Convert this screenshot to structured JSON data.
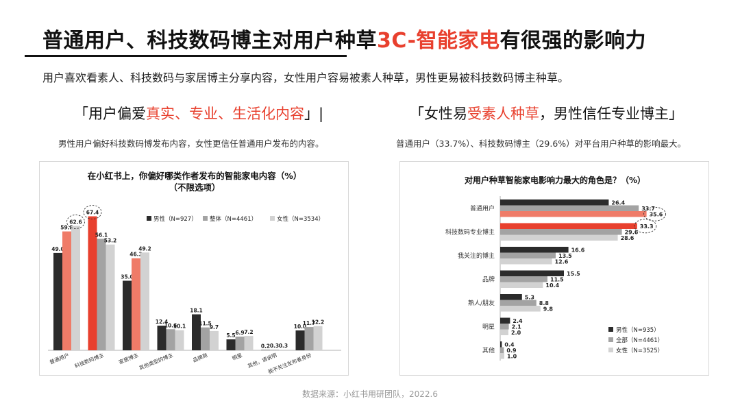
{
  "header": {
    "title_part1": "普通用户、科技数码博主对用户种草",
    "title_highlight": "3C-智能家电",
    "title_part2": "有很强的影响力",
    "subtitle": "用户喜欢看素人、科技数码与家居博主分享内容，女性用户容易被素人种草，男性更易被科技数码博主种草。"
  },
  "left_quote": {
    "open": "「用户偏爱",
    "highlight": "真实、专业、生活化内容",
    "close": "」|",
    "desc": "男性用户偏好科技数码博发布内容，女性更信任普通用户发布的内容。"
  },
  "right_quote": {
    "open": "「女性易",
    "highlight": "受素人种草",
    "close": "，男性信任专业博主」",
    "desc": "普通用户（33.7%）、科技数码博主（29.6%）对平台用户种草的影响最大。"
  },
  "source": "数据来源：小红书用研团队，2022.6",
  "colors": {
    "accent": "#e8402e",
    "male": "#2b2b2b",
    "overall": "#a3a3a3",
    "female": "#d2d2d2",
    "highlight_red": "#e8402e",
    "highlight_salmon": "#ef7b68"
  },
  "chart_data": [
    {
      "type": "bar",
      "title": "在小红书上，你偏好哪类作者发布的智能家电内容（%）",
      "subtitle": "（不限选项）",
      "categories": [
        "普通用户",
        "科技数码博主",
        "家居博主",
        "其他类型的博主",
        "品牌商",
        "明星",
        "其他，请说明",
        "我不关注发布者身份"
      ],
      "series": [
        {
          "name": "男性（N=927）",
          "values": [
            49.0,
            67.4,
            35.0,
            12.4,
            18.1,
            5.5,
            0.2,
            10.0
          ]
        },
        {
          "name": "整体（N=4461）",
          "values": [
            59.8,
            56.1,
            46.3,
            10.6,
            11.5,
            6.9,
            0.3,
            11.7
          ]
        },
        {
          "name": "女性（N=3534）",
          "values": [
            62.6,
            53.2,
            49.2,
            10.1,
            9.7,
            7.2,
            0.3,
            12.2
          ]
        }
      ],
      "highlighted": [
        {
          "category": 0,
          "series": 1,
          "color": "salmon"
        },
        {
          "category": 1,
          "series": 0,
          "color": "red"
        },
        {
          "category": 2,
          "series": 1,
          "color": "salmon"
        }
      ],
      "circled": [
        {
          "category": 0,
          "series": 2
        },
        {
          "category": 1,
          "series": 0
        }
      ],
      "ylim": [
        0,
        70
      ],
      "grid": false,
      "legend": "top-right"
    },
    {
      "type": "bar",
      "orientation": "horizontal",
      "title": "对用户种草智能家电影响力最大的角色是？（%）",
      "categories": [
        "普通用户",
        "科技数码专业博主",
        "我关注的博主",
        "品牌",
        "熟人/朋友",
        "明星",
        "其他"
      ],
      "series": [
        {
          "name": "男性（N=935）",
          "values": [
            26.4,
            33.3,
            16.6,
            15.5,
            5.3,
            2.4,
            0.4
          ]
        },
        {
          "name": "全部（N=4461）",
          "values": [
            33.7,
            29.6,
            13.5,
            11.5,
            8.8,
            2.1,
            0.9
          ]
        },
        {
          "name": "女性（N=3525）",
          "values": [
            35.6,
            28.6,
            12.6,
            10.4,
            9.8,
            2.0,
            1.0
          ]
        }
      ],
      "highlighted": [
        {
          "category": 0,
          "series": 2,
          "color": "salmon"
        },
        {
          "category": 1,
          "series": 0,
          "color": "red"
        }
      ],
      "circled": [
        {
          "category": 0,
          "series": 2
        },
        {
          "category": 1,
          "series": 0
        }
      ],
      "xlim": [
        0,
        40
      ],
      "grid": false,
      "legend": "bottom-right"
    }
  ]
}
